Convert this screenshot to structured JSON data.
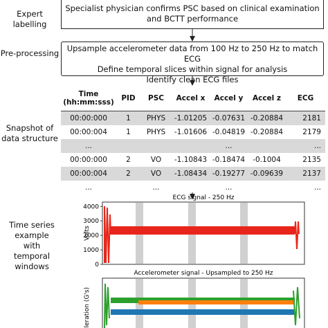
{
  "stages": [
    {
      "label": "Expert labelling",
      "box": [
        "Specialist physician confirms PSC based on clinical examination",
        "and BCTT performance"
      ]
    },
    {
      "label": "Pre-processing",
      "box": [
        "Upsample accelerometer data from 100 Hz to 250 Hz to match ECG",
        "Define temporal slices within signal for analysis",
        "Identify clean ECG files"
      ]
    }
  ],
  "snapshot": {
    "label": "Snapshot of data structure",
    "table": {
      "header": [
        "Time (hh:mm:sss)",
        "PID",
        "PSC",
        "Accel x",
        "Accel y",
        "Accel z",
        "ECG"
      ],
      "rows": [
        [
          "00:00:000",
          "1",
          "PHYS",
          "-1.01205",
          "-0.07631",
          "-0.20884",
          "2181"
        ],
        [
          "00:00:004",
          "1",
          "PHYS",
          "-1.01606",
          "-0.04819",
          "-0.20884",
          "2179"
        ],
        [
          "...",
          null,
          null,
          null,
          "...",
          null,
          "..."
        ],
        [
          "00:00:000",
          "2",
          "VO",
          "-1.10843",
          "-0.18474",
          "-0.1004",
          "2135"
        ],
        [
          "00:00:004",
          "2",
          "VO",
          "-1.08434",
          "-0.19277",
          "-0.09639",
          "2137"
        ],
        [
          "...",
          null,
          "...",
          null,
          "...",
          null,
          "..."
        ]
      ]
    }
  },
  "time_series": {
    "label": "Time series example with temporal windows",
    "charts": [
      {
        "title": "ECG signal - 250 Hz",
        "ylabel": "Volts",
        "ylim": [
          0,
          4300
        ],
        "yticks": [
          0,
          1000,
          2000,
          3000,
          4000
        ]
      },
      {
        "title": "Accelerometer signal - Upsampled to 250 Hz",
        "ylabel": "Acceleration (G's)"
      }
    ]
  }
}
